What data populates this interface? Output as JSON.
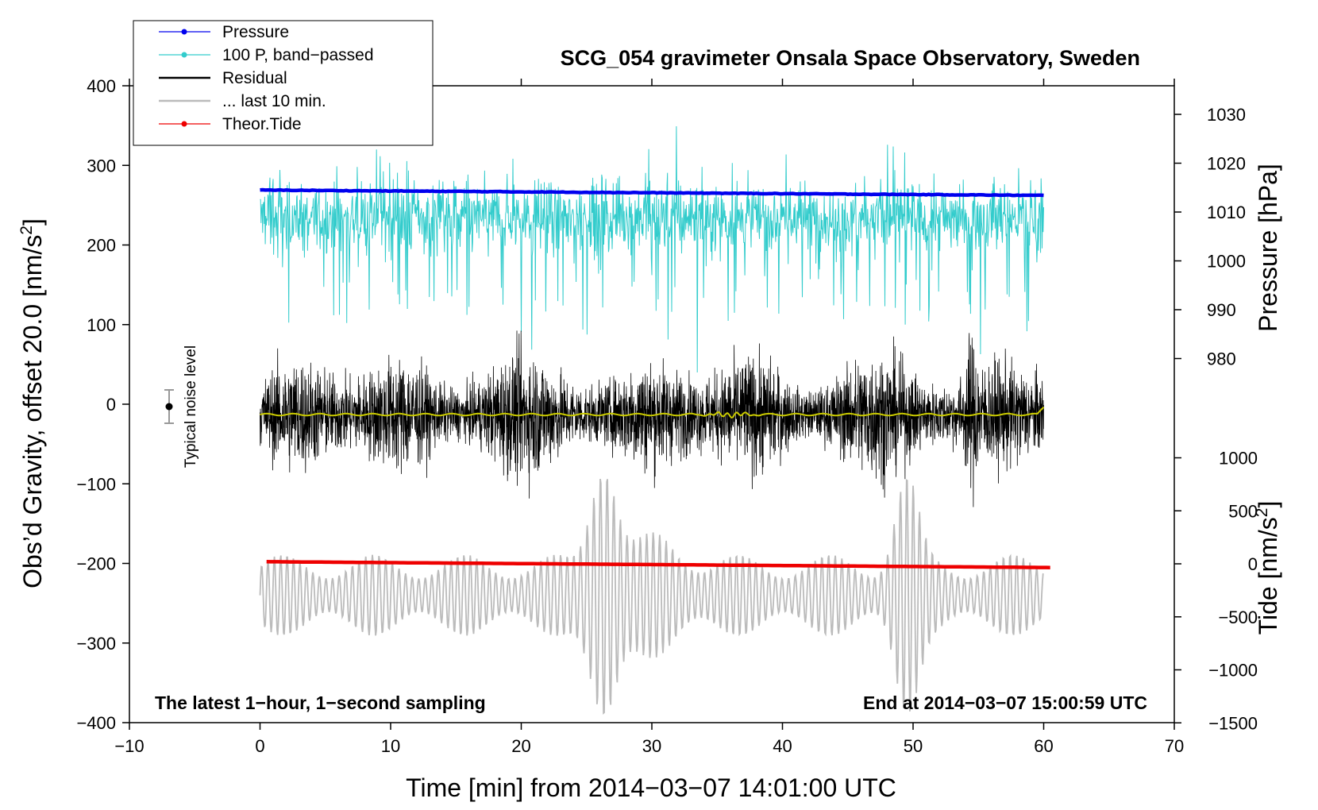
{
  "chart_data": {
    "type": "line",
    "title": "SCG_054 gravimeter Onsala Space Observatory, Sweden",
    "xlabel": "Time [min] from 2014−03−07 14:01:00 UTC",
    "ylabel_left": "Obs’d Gravity, offset 20.0 [nm/s",
    "ylabel_left_sup": "2",
    "ylabel_left_tail": "]",
    "ylabel_right_pressure": "Pressure [hPa]",
    "ylabel_right_tide": "Tide [nm/s",
    "ylabel_right_tide_sup": "2",
    "ylabel_right_tide_tail": "]",
    "xlim": [
      -10,
      70
    ],
    "ylim_left": [
      -400,
      400
    ],
    "x_ticks": [
      {
        "v": -10,
        "label": "−10"
      },
      {
        "v": 0,
        "label": "0"
      },
      {
        "v": 10,
        "label": "10"
      },
      {
        "v": 20,
        "label": "20"
      },
      {
        "v": 30,
        "label": "30"
      },
      {
        "v": 40,
        "label": "40"
      },
      {
        "v": 50,
        "label": "50"
      },
      {
        "v": 60,
        "label": "60"
      },
      {
        "v": 70,
        "label": "70"
      }
    ],
    "y_left_ticks": [
      {
        "v": 400,
        "label": "400"
      },
      {
        "v": 300,
        "label": "300"
      },
      {
        "v": 200,
        "label": "200"
      },
      {
        "v": 100,
        "label": "100"
      },
      {
        "v": 0,
        "label": "0"
      },
      {
        "v": -100,
        "label": "−100"
      },
      {
        "v": -200,
        "label": "−200"
      },
      {
        "v": -300,
        "label": "−300"
      },
      {
        "v": -400,
        "label": "−400"
      }
    ],
    "pressure_axis": {
      "ticks": [
        {
          "v": 1030,
          "label": "1030"
        },
        {
          "v": 1020,
          "label": "1020"
        },
        {
          "v": 1010,
          "label": "1010"
        },
        {
          "v": 1000,
          "label": "1000"
        },
        {
          "v": 990,
          "label": "990"
        },
        {
          "v": 980,
          "label": "980"
        }
      ]
    },
    "tide_axis": {
      "ticks": [
        {
          "v": 1000,
          "label": "1000"
        },
        {
          "v": 500,
          "label": "500"
        },
        {
          "v": 0,
          "label": "0"
        },
        {
          "v": -500,
          "label": "−500"
        },
        {
          "v": -1000,
          "label": "−1000"
        },
        {
          "v": -1500,
          "label": "−1500"
        }
      ]
    },
    "legend": [
      {
        "label": "Pressure",
        "color": "#0000ee",
        "marker": true
      },
      {
        "label": "100 P, band−passed",
        "color": "#33cccc",
        "marker": true
      },
      {
        "label": "Residual",
        "color": "#000000",
        "marker": false
      },
      {
        "label": "... last 10 min.",
        "color": "#bbbbbb",
        "marker": false
      },
      {
        "label": "Theor.Tide",
        "color": "#ee0000",
        "marker": true
      }
    ],
    "series": [
      {
        "name": "Pressure",
        "unit": "hPa",
        "color": "#0000ee",
        "x_range": [
          0,
          60
        ],
        "start": 1014.5,
        "end": 1013.4
      },
      {
        "name": "100 P, band−passed",
        "unit": "nm/s2",
        "color": "#33cccc",
        "x_range": [
          0,
          60
        ],
        "mean": 235,
        "amplitude": 65
      },
      {
        "name": "Residual",
        "unit": "nm/s2",
        "color": "#000000",
        "x_range": [
          0,
          60
        ],
        "mean": -13,
        "amplitude": 75
      },
      {
        "name": "... last 10 min.",
        "unit": "nm/s2",
        "color": "#bbbbbb",
        "x_range": [
          0,
          60
        ],
        "mean": -240,
        "amplitude": 60
      },
      {
        "name": "Theor.Tide",
        "unit": "nm/s2",
        "color": "#ee0000",
        "x_range": [
          0.5,
          60.5
        ],
        "start": 20,
        "end": -35
      },
      {
        "name": "smoothed residual",
        "unit": "nm/s2",
        "color": "#cccc00",
        "x_range": [
          0,
          60
        ],
        "mean": -13
      }
    ],
    "noise_bar": {
      "x": -7,
      "center": 0,
      "half_range": 20,
      "label": "Typical noise level"
    },
    "annotation_left": "The latest 1−hour, 1−second sampling",
    "annotation_right": "End at 2014−03−07 15:00:59 UTC"
  }
}
